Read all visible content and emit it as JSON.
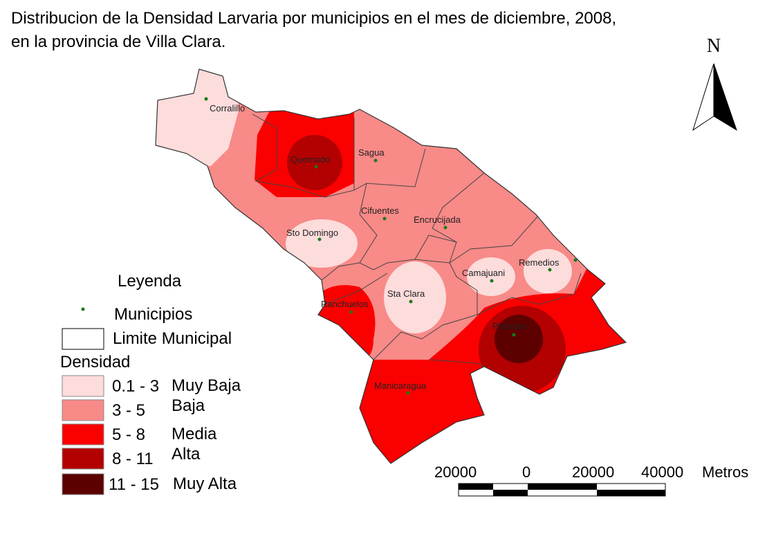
{
  "header": {
    "title_line1": "Distribucion de la Densidad Larvaria por municipios en el mes de diciembre, 2008,",
    "title_line2": "en la provincia de Villa Clara."
  },
  "north": "N",
  "municipalities": [
    "Corralillo",
    "Quemado",
    "Sagua",
    "Cifuentes",
    "Encrucijada",
    "Sto Domingo",
    "Remedios",
    "Camajuani",
    "Sta Clara",
    "Ranchuelos",
    "Placetas",
    "Manicaragua"
  ],
  "legend": {
    "title": "Leyenda",
    "points": "Municipios",
    "boundary": "Limite Municipal",
    "density_title": "Densidad",
    "classes": [
      {
        "range": "0.1 - 3",
        "label": "Muy Baja",
        "color": "#fddcdc"
      },
      {
        "range": "3 - 5",
        "label": "Baja",
        "color": "#f88a88"
      },
      {
        "range": "5 - 8",
        "label": "Media",
        "color": "#fb0000"
      },
      {
        "range": "8 - 11",
        "label": "Alta",
        "color": "#b30000"
      },
      {
        "range": "11 - 15",
        "label": "Muy Alta",
        "color": "#5c0000"
      }
    ]
  },
  "scale": {
    "labels": [
      "20000",
      "0",
      "20000",
      "40000"
    ],
    "unit": "Metros"
  }
}
